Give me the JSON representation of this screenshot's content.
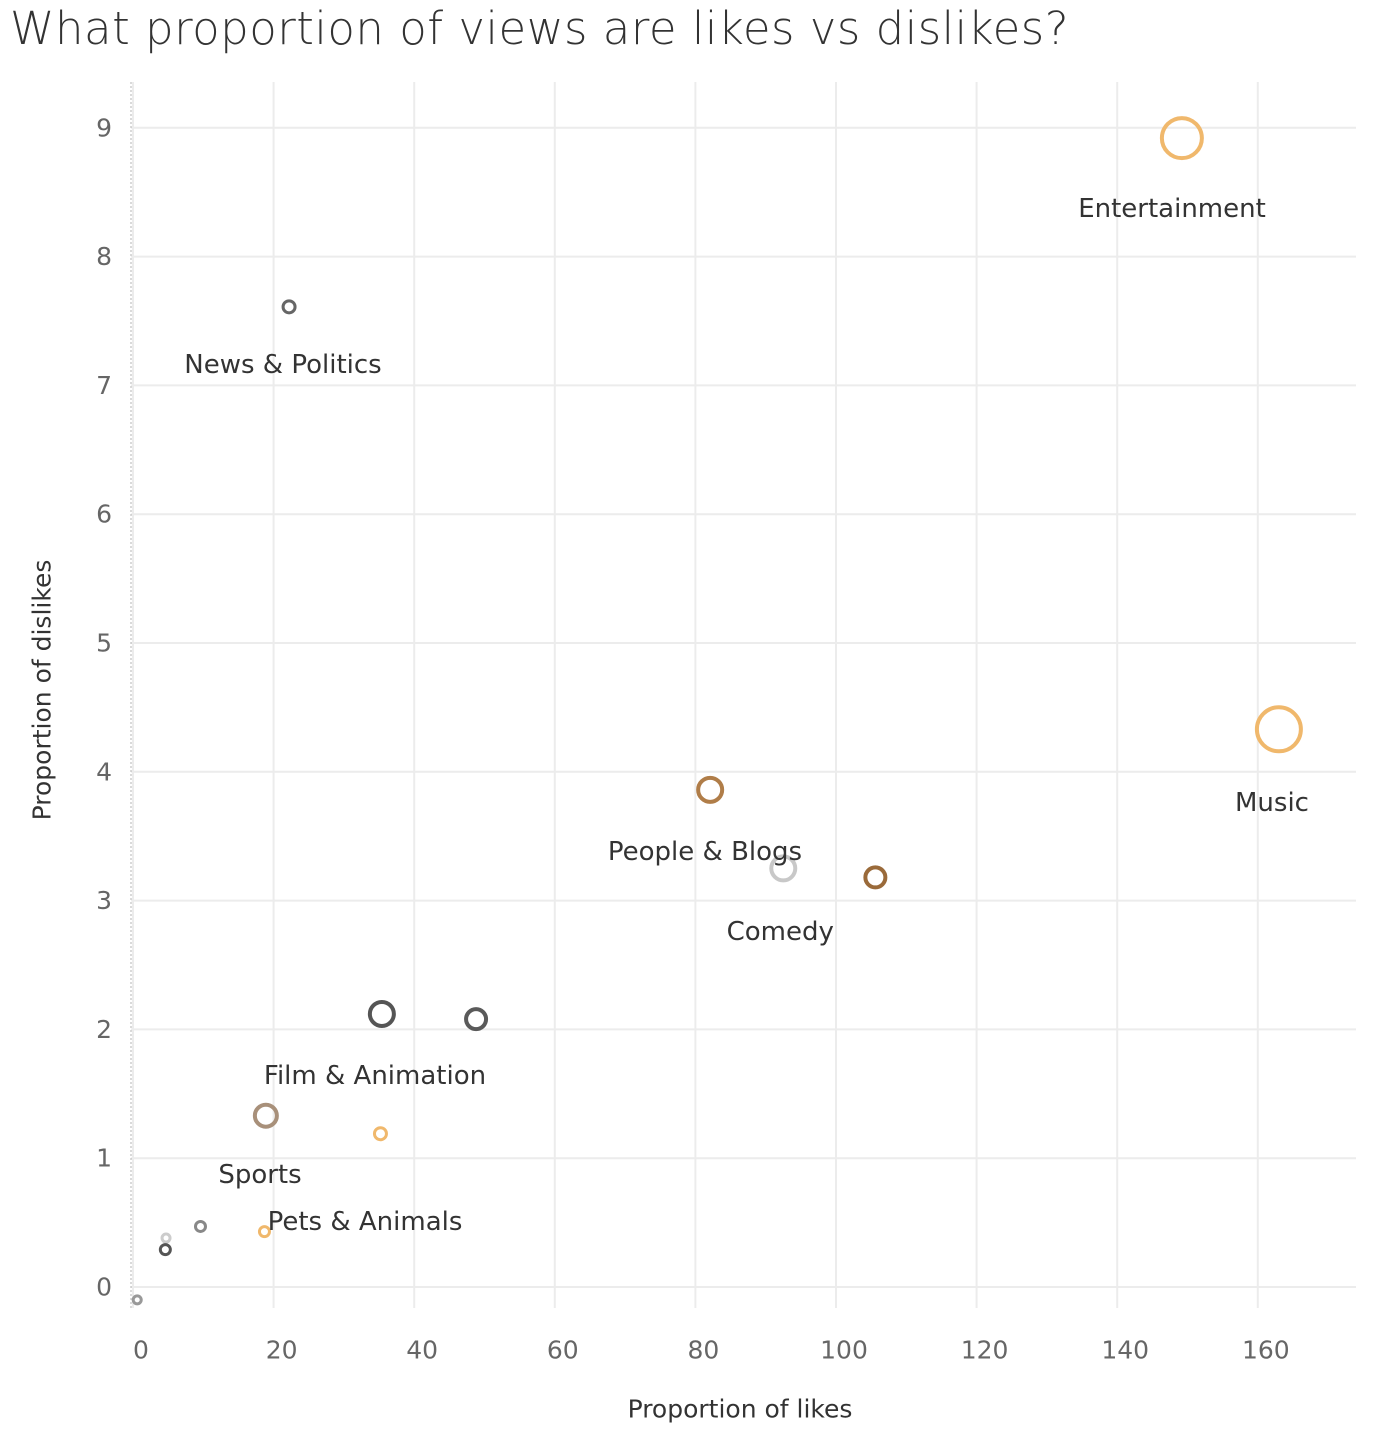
{
  "chart_data": {
    "type": "scatter",
    "title": "What proportion of views are likes vs dislikes?",
    "xlabel": "Proportion of likes",
    "ylabel": "Proportion of dislikes",
    "xlim": [
      0,
      175
    ],
    "ylim": [
      -0.15,
      9.5
    ],
    "xticks": [
      0,
      20,
      40,
      60,
      80,
      100,
      120,
      140,
      160
    ],
    "yticks": [
      0,
      1,
      2,
      3,
      4,
      5,
      6,
      7,
      8,
      9
    ],
    "grid": true,
    "marker": "hollow-circle",
    "points": [
      {
        "x": 149.2,
        "y": 8.92,
        "label": "Entertainment",
        "color": "#f0b86c",
        "size": 20
      },
      {
        "x": 163.0,
        "y": 4.33,
        "label": "Music",
        "color": "#f0b86c",
        "size": 22
      },
      {
        "x": 22.2,
        "y": 7.61,
        "label": "News & Politics",
        "color": "#666666",
        "size": 6
      },
      {
        "x": 82.1,
        "y": 3.86,
        "label": "People & Blogs",
        "color": "#b07d48",
        "size": 12
      },
      {
        "x": 92.5,
        "y": 3.25,
        "label": "Comedy",
        "color": "#c8c8c8",
        "size": 12
      },
      {
        "x": 105.6,
        "y": 3.18,
        "label": "",
        "color": "#9a6a3a",
        "size": 10
      },
      {
        "x": 35.4,
        "y": 2.12,
        "label": "Film & Animation",
        "color": "#555555",
        "size": 12
      },
      {
        "x": 48.8,
        "y": 2.08,
        "label": "",
        "color": "#5a5a5a",
        "size": 10
      },
      {
        "x": 18.9,
        "y": 1.33,
        "label": "Sports",
        "color": "#a8907a",
        "size": 11
      },
      {
        "x": 35.2,
        "y": 1.19,
        "label": "",
        "color": "#f0b86c",
        "size": 6
      },
      {
        "x": 18.7,
        "y": 0.43,
        "label": "Pets & Animals",
        "color": "#f0b86c",
        "size": 5
      },
      {
        "x": 9.6,
        "y": 0.47,
        "label": "",
        "color": "#888888",
        "size": 5
      },
      {
        "x": 4.7,
        "y": 0.38,
        "label": "",
        "color": "#cccccc",
        "size": 4
      },
      {
        "x": 4.6,
        "y": 0.29,
        "label": "",
        "color": "#555555",
        "size": 5
      },
      {
        "x": 0.6,
        "y": -0.1,
        "label": "",
        "color": "#999999",
        "size": 4
      }
    ]
  }
}
